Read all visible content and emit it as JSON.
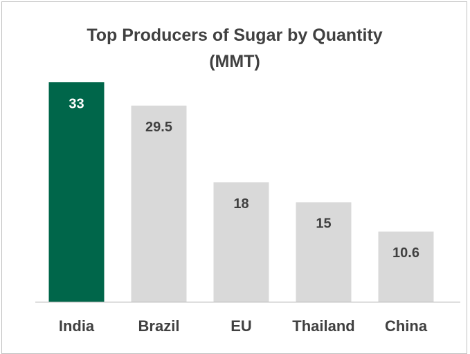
{
  "chart_data": {
    "type": "bar",
    "title": "Top Producers of Sugar by Quantity (MMT)",
    "categories": [
      "India",
      "Brazil",
      "EU",
      "Thailand",
      "China"
    ],
    "values": [
      33,
      29.5,
      18,
      15,
      10.6
    ],
    "colors": [
      "#00664a",
      "#d9d9d9",
      "#d9d9d9",
      "#d9d9d9",
      "#d9d9d9"
    ],
    "label_colors": [
      "#ffffff",
      "#404040",
      "#404040",
      "#404040",
      "#404040"
    ],
    "ylim": [
      0,
      33
    ]
  }
}
